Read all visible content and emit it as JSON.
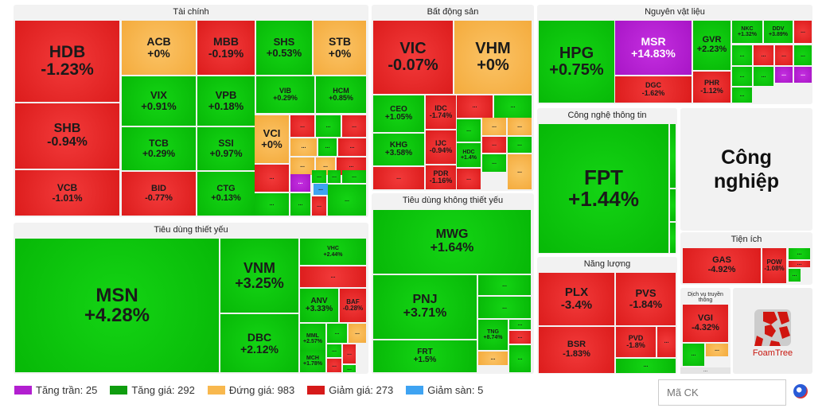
{
  "colors": {
    "up": "#0bc20b",
    "down": "#e82424",
    "flat": "#f8b84e",
    "ceil": "#b21fd0",
    "floor": "#3ea3f2"
  },
  "more_label": "...",
  "groups": [
    {
      "name": "Tài chính",
      "tiles": [
        {
          "ticker": "HDB",
          "change": "-1.23%",
          "status": "down"
        },
        {
          "ticker": "SHB",
          "change": "-0.94%",
          "status": "down"
        },
        {
          "ticker": "VCB",
          "change": "-1.01%",
          "status": "down"
        },
        {
          "ticker": "ACB",
          "change": "+0%",
          "status": "flat"
        },
        {
          "ticker": "MBB",
          "change": "-0.19%",
          "status": "down"
        },
        {
          "ticker": "SHS",
          "change": "+0.53%",
          "status": "up"
        },
        {
          "ticker": "STB",
          "change": "+0%",
          "status": "flat"
        },
        {
          "ticker": "VIX",
          "change": "+0.91%",
          "status": "up"
        },
        {
          "ticker": "VPB",
          "change": "+0.18%",
          "status": "up"
        },
        {
          "ticker": "TCB",
          "change": "+0.29%",
          "status": "up"
        },
        {
          "ticker": "SSI",
          "change": "+0.97%",
          "status": "up"
        },
        {
          "ticker": "BID",
          "change": "-0.77%",
          "status": "down"
        },
        {
          "ticker": "CTG",
          "change": "+0.13%",
          "status": "up"
        },
        {
          "ticker": "VIB",
          "change": "+0.29%",
          "status": "up"
        },
        {
          "ticker": "HCM",
          "change": "+0.85%",
          "status": "up"
        },
        {
          "ticker": "VCI",
          "change": "+0%",
          "status": "flat"
        }
      ],
      "more": [
        "down",
        "up",
        "down",
        "flat",
        "up",
        "down",
        "down",
        "flat",
        "flat",
        "down",
        "ceil",
        "up",
        "up",
        "up",
        "floor",
        "up",
        "up",
        "down",
        "up"
      ]
    },
    {
      "name": "Bất động sản",
      "tiles": [
        {
          "ticker": "VIC",
          "change": "-0.07%",
          "status": "down"
        },
        {
          "ticker": "VHM",
          "change": "+0%",
          "status": "flat"
        },
        {
          "ticker": "CEO",
          "change": "+1.05%",
          "status": "up"
        },
        {
          "ticker": "KHG",
          "change": "+3.58%",
          "status": "up"
        },
        {
          "ticker": "IDC",
          "change": "-1.74%",
          "status": "down"
        },
        {
          "ticker": "IJC",
          "change": "-0.94%",
          "status": "down"
        },
        {
          "ticker": "PDR",
          "change": "-1.16%",
          "status": "down"
        },
        {
          "ticker": "HDC",
          "change": "+1.4%",
          "status": "up"
        }
      ],
      "more": [
        "down",
        "down",
        "up",
        "up",
        "flat",
        "flat",
        "down",
        "up",
        "down",
        "up",
        "flat"
      ]
    },
    {
      "name": "Nguyên vật liệu",
      "tiles": [
        {
          "ticker": "HPG",
          "change": "+0.75%",
          "status": "up"
        },
        {
          "ticker": "MSR",
          "change": "+14.83%",
          "status": "ceil"
        },
        {
          "ticker": "DGC",
          "change": "-1.62%",
          "status": "down"
        },
        {
          "ticker": "GVR",
          "change": "+2.23%",
          "status": "up"
        },
        {
          "ticker": "PHR",
          "change": "-1.12%",
          "status": "down"
        },
        {
          "ticker": "NKC",
          "change": "+1.32%",
          "status": "up"
        },
        {
          "ticker": "DDV",
          "change": "+3.89%",
          "status": "up"
        }
      ],
      "more": [
        "down",
        "up",
        "down",
        "down",
        "up",
        "up",
        "up",
        "ceil",
        "ceil",
        "up"
      ]
    },
    {
      "name": "Công nghệ thông tin",
      "tiles": [
        {
          "ticker": "FPT",
          "change": "+1.44%",
          "status": "up"
        }
      ],
      "more": []
    },
    {
      "name": "Công nghiệp",
      "tiles": [],
      "more": []
    },
    {
      "name": "Tiện ích",
      "tiles": [
        {
          "ticker": "GAS",
          "change": "-4.92%",
          "status": "down"
        },
        {
          "ticker": "POW",
          "change": "-1.08%",
          "status": "down"
        }
      ],
      "more": [
        "up",
        "down",
        "up"
      ]
    },
    {
      "name": "Dịch vụ truyền thông",
      "tiles": [
        {
          "ticker": "VGI",
          "change": "-4.32%",
          "status": "down"
        }
      ],
      "more": [
        "up",
        "flat"
      ]
    },
    {
      "name": "Năng lượng",
      "tiles": [
        {
          "ticker": "PLX",
          "change": "-3.4%",
          "status": "down"
        },
        {
          "ticker": "PVS",
          "change": "-1.84%",
          "status": "down"
        },
        {
          "ticker": "BSR",
          "change": "-1.83%",
          "status": "down"
        },
        {
          "ticker": "PVD",
          "change": "-1.8%",
          "status": "down"
        }
      ],
      "more": [
        "down",
        "up"
      ]
    },
    {
      "name": "Tiêu dùng thiết yếu",
      "tiles": [
        {
          "ticker": "MSN",
          "change": "+4.28%",
          "status": "up"
        },
        {
          "ticker": "VNM",
          "change": "+3.25%",
          "status": "up"
        },
        {
          "ticker": "DBC",
          "change": "+2.12%",
          "status": "up"
        },
        {
          "ticker": "VHC",
          "change": "+2.44%",
          "status": "up"
        },
        {
          "ticker": "ANV",
          "change": "+3.33%",
          "status": "up"
        },
        {
          "ticker": "BAF",
          "change": "-0.28%",
          "status": "down"
        },
        {
          "ticker": "MML",
          "change": "+2.57%",
          "status": "up"
        },
        {
          "ticker": "MCH",
          "change": "+1.78%",
          "status": "up"
        }
      ],
      "more": [
        "down",
        "up",
        "flat",
        "up",
        "down",
        "down",
        "up"
      ]
    },
    {
      "name": "Tiêu dùng không thiết yếu",
      "tiles": [
        {
          "ticker": "MWG",
          "change": "+1.64%",
          "status": "up"
        },
        {
          "ticker": "PNJ",
          "change": "+3.71%",
          "status": "up"
        },
        {
          "ticker": "FRT",
          "change": "+1.5%",
          "status": "up"
        },
        {
          "ticker": "TNG",
          "change": "+8.74%",
          "status": "up"
        }
      ],
      "more": [
        "up",
        "up",
        "flat",
        "up",
        "down",
        "up"
      ]
    }
  ],
  "logo": "FoamTree",
  "legend": [
    {
      "label": "Tăng trần: 25",
      "color": "#b21fd0"
    },
    {
      "label": "Tăng giá: 292",
      "color": "#0f9d0f"
    },
    {
      "label": "Đứng giá: 983",
      "color": "#f8b84e"
    },
    {
      "label": "Giảm giá: 273",
      "color": "#d61a1a"
    },
    {
      "label": "Giảm sàn: 5",
      "color": "#3ea3f2"
    }
  ],
  "search": {
    "placeholder": "Mã CK"
  }
}
